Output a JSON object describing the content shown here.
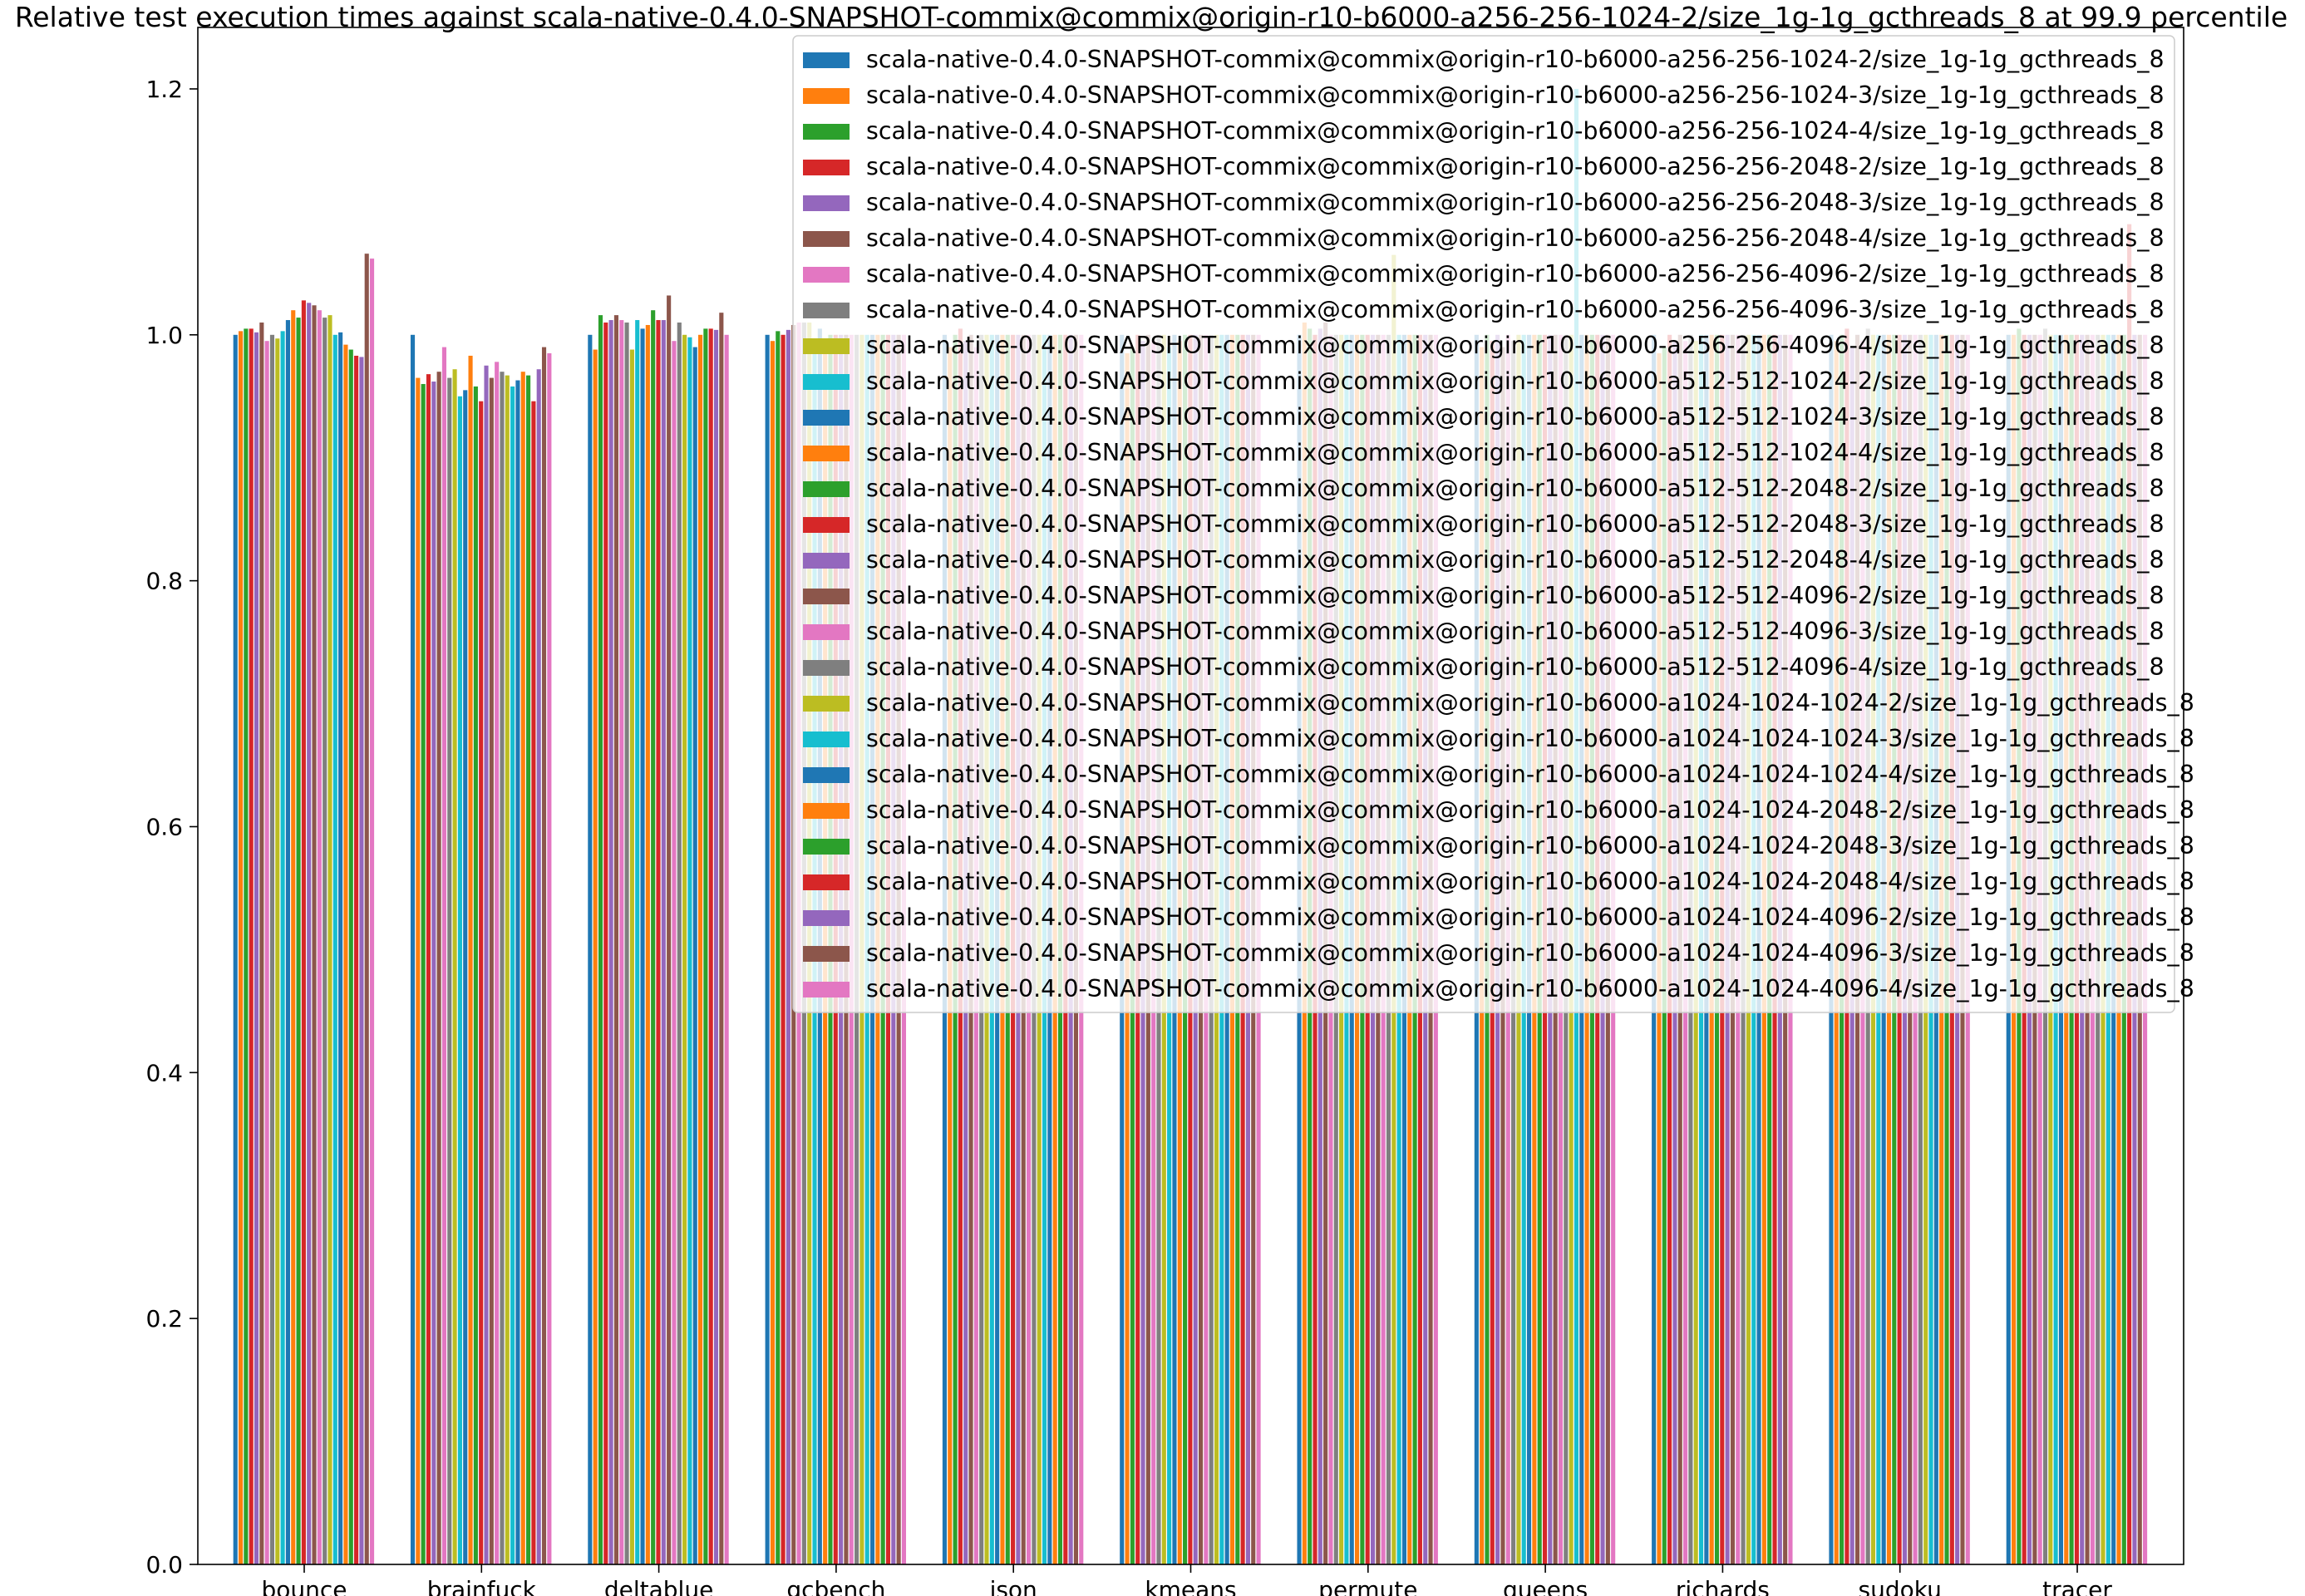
{
  "chart_data": {
    "type": "bar",
    "title": "Relative test execution times against scala-native-0.4.0-SNAPSHOT-commix@commix@origin-r10-b6000-a256-256-1024-2/size_1g-1g_gcthreads_8 at 99.9 percentile",
    "xlabel": "",
    "ylabel": "",
    "ylim": [
      0,
      1.25
    ],
    "yticks": [
      "0.0",
      "0.2",
      "0.4",
      "0.6",
      "0.8",
      "1.0",
      "1.2"
    ],
    "grid": false,
    "legend_position": "top-right",
    "categories": [
      "bounce",
      "brainfuck",
      "deltablue",
      "gcbench",
      "json",
      "kmeans",
      "permute",
      "queens",
      "richards",
      "sudoku",
      "tracer"
    ],
    "palette": [
      "#1f77b4",
      "#ff7f0e",
      "#2ca02c",
      "#d62728",
      "#9467bd",
      "#8c564b",
      "#e377c2",
      "#7f7f7f",
      "#bcbd22",
      "#17becf"
    ],
    "series": [
      {
        "name": "scala-native-0.4.0-SNAPSHOT-commix@commix@origin-r10-b6000-a256-256-1024-2/size_1g-1g_gcthreads_8",
        "values": [
          1.0,
          1.0,
          1.0,
          1.0,
          1.0,
          1.0,
          1.0,
          1.0,
          1.0,
          1.0,
          1.0
        ]
      },
      {
        "name": "scala-native-0.4.0-SNAPSHOT-commix@commix@origin-r10-b6000-a256-256-1024-3/size_1g-1g_gcthreads_8",
        "values": [
          1.003,
          0.965,
          0.988,
          0.995,
          0.99,
          0.985,
          1.01,
          0.99,
          0.985,
          0.995,
          1.0
        ]
      },
      {
        "name": "scala-native-0.4.0-SNAPSHOT-commix@commix@origin-r10-b6000-a256-256-1024-4/size_1g-1g_gcthreads_8",
        "values": [
          1.005,
          0.96,
          1.016,
          1.003,
          1.0,
          0.99,
          1.005,
          1.0,
          0.99,
          1.0,
          1.005
        ]
      },
      {
        "name": "scala-native-0.4.0-SNAPSHOT-commix@commix@origin-r10-b6000-a256-256-2048-2/size_1g-1g_gcthreads_8",
        "values": [
          1.005,
          0.968,
          1.01,
          1.0,
          1.005,
          1.0,
          1.0,
          0.995,
          1.0,
          1.005,
          1.0
        ]
      },
      {
        "name": "scala-native-0.4.0-SNAPSHOT-commix@commix@origin-r10-b6000-a256-256-2048-3/size_1g-1g_gcthreads_8",
        "values": [
          1.002,
          0.962,
          1.012,
          1.004,
          0.995,
          0.995,
          1.005,
          1.0,
          0.995,
          0.99,
          1.0
        ]
      },
      {
        "name": "scala-native-0.4.0-SNAPSHOT-commix@commix@origin-r10-b6000-a256-256-2048-4/size_1g-1g_gcthreads_8",
        "values": [
          1.01,
          0.97,
          1.016,
          1.008,
          1.0,
          1.0,
          1.01,
          0.99,
          1.0,
          1.0,
          1.0
        ]
      },
      {
        "name": "scala-native-0.4.0-SNAPSHOT-commix@commix@origin-r10-b6000-a256-256-4096-2/size_1g-1g_gcthreads_8",
        "values": [
          0.995,
          0.99,
          1.012,
          1.01,
          0.99,
          0.995,
          1.0,
          1.0,
          0.995,
          0.995,
          1.0
        ]
      },
      {
        "name": "scala-native-0.4.0-SNAPSHOT-commix@commix@origin-r10-b6000-a256-256-4096-3/size_1g-1g_gcthreads_8",
        "values": [
          1.0,
          0.965,
          1.01,
          1.01,
          1.0,
          1.0,
          1.0,
          0.995,
          1.0,
          1.005,
          1.005
        ]
      },
      {
        "name": "scala-native-0.4.0-SNAPSHOT-commix@commix@origin-r10-b6000-a256-256-4096-4/size_1g-1g_gcthreads_8",
        "values": [
          0.997,
          0.972,
          0.988,
          1.01,
          1.0,
          1.0,
          1.0,
          1.0,
          0.995,
          1.0,
          1.0
        ]
      },
      {
        "name": "scala-native-0.4.0-SNAPSHOT-commix@commix@origin-r10-b6000-a512-512-1024-2/size_1g-1g_gcthreads_8",
        "values": [
          1.003,
          0.95,
          1.012,
          0.993,
          1.0,
          0.99,
          1.0,
          1.0,
          1.0,
          1.0,
          1.0
        ]
      },
      {
        "name": "scala-native-0.4.0-SNAPSHOT-commix@commix@origin-r10-b6000-a512-512-1024-3/size_1g-1g_gcthreads_8",
        "values": [
          1.012,
          0.955,
          1.005,
          1.005,
          1.0,
          1.0,
          1.0,
          1.0,
          1.0,
          1.0,
          1.0
        ]
      },
      {
        "name": "scala-native-0.4.0-SNAPSHOT-commix@commix@origin-r10-b6000-a512-512-1024-4/size_1g-1g_gcthreads_8",
        "values": [
          1.02,
          0.983,
          1.008,
          0.995,
          1.0,
          0.995,
          1.0,
          1.0,
          1.0,
          1.0,
          1.0
        ]
      },
      {
        "name": "scala-native-0.4.0-SNAPSHOT-commix@commix@origin-r10-b6000-a512-512-2048-2/size_1g-1g_gcthreads_8",
        "values": [
          1.014,
          0.958,
          1.02,
          1.0,
          1.0,
          1.0,
          1.0,
          1.0,
          1.0,
          1.0,
          1.0
        ]
      },
      {
        "name": "scala-native-0.4.0-SNAPSHOT-commix@commix@origin-r10-b6000-a512-512-2048-3/size_1g-1g_gcthreads_8",
        "values": [
          1.028,
          0.946,
          1.012,
          1.0,
          1.0,
          1.0,
          1.0,
          1.0,
          1.0,
          1.0,
          1.0
        ]
      },
      {
        "name": "scala-native-0.4.0-SNAPSHOT-commix@commix@origin-r10-b6000-a512-512-2048-4/size_1g-1g_gcthreads_8",
        "values": [
          1.026,
          0.975,
          1.012,
          1.0,
          1.0,
          1.0,
          1.0,
          1.0,
          1.0,
          1.0,
          1.0
        ]
      },
      {
        "name": "scala-native-0.4.0-SNAPSHOT-commix@commix@origin-r10-b6000-a512-512-4096-2/size_1g-1g_gcthreads_8",
        "values": [
          1.024,
          0.965,
          1.032,
          1.0,
          1.0,
          1.0,
          1.0,
          1.0,
          1.0,
          1.0,
          1.0
        ]
      },
      {
        "name": "scala-native-0.4.0-SNAPSHOT-commix@commix@origin-r10-b6000-a512-512-4096-3/size_1g-1g_gcthreads_8",
        "values": [
          1.02,
          0.978,
          0.995,
          1.0,
          1.0,
          1.0,
          1.0,
          1.0,
          1.0,
          1.0,
          1.0
        ]
      },
      {
        "name": "scala-native-0.4.0-SNAPSHOT-commix@commix@origin-r10-b6000-a512-512-4096-4/size_1g-1g_gcthreads_8",
        "values": [
          1.014,
          0.97,
          1.01,
          1.0,
          1.0,
          1.0,
          1.0,
          1.0,
          1.0,
          1.0,
          1.0
        ]
      },
      {
        "name": "scala-native-0.4.0-SNAPSHOT-commix@commix@origin-r10-b6000-a1024-1024-1024-2/size_1g-1g_gcthreads_8",
        "values": [
          1.016,
          0.967,
          1.0,
          1.0,
          1.0,
          1.0,
          1.065,
          1.0,
          1.0,
          1.0,
          1.0
        ]
      },
      {
        "name": "scala-native-0.4.0-SNAPSHOT-commix@commix@origin-r10-b6000-a1024-1024-1024-3/size_1g-1g_gcthreads_8",
        "values": [
          1.0,
          0.958,
          0.998,
          1.0,
          1.0,
          1.0,
          1.0,
          1.2,
          1.0,
          1.0,
          1.0
        ]
      },
      {
        "name": "scala-native-0.4.0-SNAPSHOT-commix@commix@origin-r10-b6000-a1024-1024-1024-4/size_1g-1g_gcthreads_8",
        "values": [
          1.002,
          0.963,
          0.99,
          1.0,
          1.0,
          1.0,
          1.0,
          1.0,
          1.0,
          1.0,
          1.0
        ]
      },
      {
        "name": "scala-native-0.4.0-SNAPSHOT-commix@commix@origin-r10-b6000-a1024-1024-2048-2/size_1g-1g_gcthreads_8",
        "values": [
          0.992,
          0.97,
          1.0,
          1.0,
          1.0,
          1.0,
          1.0,
          1.0,
          1.0,
          1.0,
          1.0
        ]
      },
      {
        "name": "scala-native-0.4.0-SNAPSHOT-commix@commix@origin-r10-b6000-a1024-1024-2048-3/size_1g-1g_gcthreads_8",
        "values": [
          0.988,
          0.967,
          1.005,
          1.0,
          1.0,
          1.0,
          1.0,
          1.0,
          1.0,
          1.0,
          1.0
        ]
      },
      {
        "name": "scala-native-0.4.0-SNAPSHOT-commix@commix@origin-r10-b6000-a1024-1024-2048-4/size_1g-1g_gcthreads_8",
        "values": [
          0.983,
          0.946,
          1.005,
          1.0,
          1.0,
          1.0,
          1.0,
          1.0,
          1.0,
          1.0,
          1.09
        ]
      },
      {
        "name": "scala-native-0.4.0-SNAPSHOT-commix@commix@origin-r10-b6000-a1024-1024-4096-2/size_1g-1g_gcthreads_8",
        "values": [
          0.982,
          0.972,
          1.004,
          1.0,
          1.0,
          1.0,
          1.0,
          1.0,
          1.0,
          1.0,
          1.0
        ]
      },
      {
        "name": "scala-native-0.4.0-SNAPSHOT-commix@commix@origin-r10-b6000-a1024-1024-4096-3/size_1g-1g_gcthreads_8",
        "values": [
          1.066,
          0.99,
          1.018,
          1.0,
          1.0,
          1.0,
          1.0,
          1.0,
          1.0,
          1.0,
          1.0
        ]
      },
      {
        "name": "scala-native-0.4.0-SNAPSHOT-commix@commix@origin-r10-b6000-a1024-1024-4096-4/size_1g-1g_gcthreads_8",
        "values": [
          1.062,
          0.985,
          1.0,
          1.0,
          1.0,
          1.0,
          1.0,
          1.0,
          1.0,
          1.0,
          1.0
        ]
      }
    ]
  }
}
